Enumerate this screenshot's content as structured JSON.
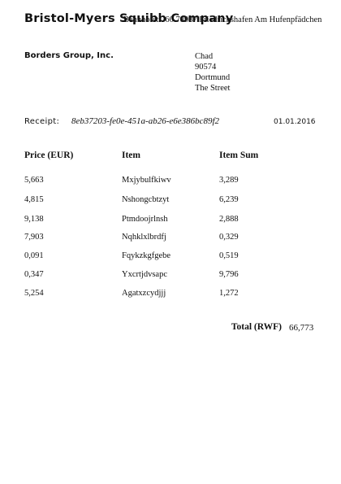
{
  "header": {
    "company": "Bristol-Myers Squibb Company",
    "sender_address": "Bahnhofstr. 60 78987 Friedrichshafen Am Hufenpfädchen"
  },
  "recipient": {
    "company": "Borders Group, Inc.",
    "lines": [
      "Chad",
      "90574",
      "Dortmund",
      "The Street"
    ]
  },
  "receipt": {
    "label": "Receipt:",
    "id": "8eb37203-fe0e-451a-ab26-e6e386bc89f2",
    "date": "01.01.2016"
  },
  "table": {
    "headers": [
      "Price (EUR)",
      "Item",
      "Item Sum"
    ],
    "rows": [
      [
        "5,663",
        "Mxjybulfkiwv",
        "3,289"
      ],
      [
        "4,815",
        "Nshongcbtzyt",
        "6,239"
      ],
      [
        "9,138",
        "Ptmdoojrlnsh",
        "2,888"
      ],
      [
        "7,903",
        "Nqhklxlbrdfj",
        "0,329"
      ],
      [
        "0,091",
        "Fqykzkgfgebe",
        "0,519"
      ],
      [
        "0,347",
        "Yxcrtjdvsapc",
        "9,796"
      ],
      [
        "5,254",
        "Agatxzcydjjj",
        "1,272"
      ]
    ]
  },
  "total": {
    "label": "Total (RWF)",
    "value": "66,773"
  }
}
